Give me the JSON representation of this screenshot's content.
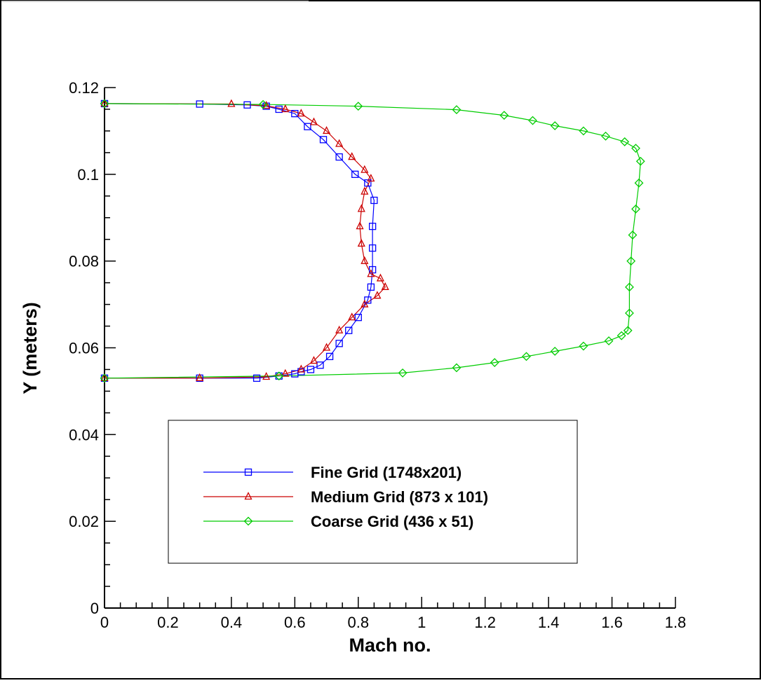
{
  "chart_data": {
    "type": "line",
    "title": "",
    "xlabel": "Mach no.",
    "ylabel": "Y (meters)",
    "xlim": [
      0,
      1.8
    ],
    "ylim": [
      0,
      0.12
    ],
    "x_ticks": [
      "0",
      "0.2",
      "0.4",
      "0.6",
      "0.8",
      "1",
      "1.2",
      "1.4",
      "1.6",
      "1.8"
    ],
    "y_ticks": [
      "0",
      "0.02",
      "0.04",
      "0.06",
      "0.08",
      "0.1",
      "0.12"
    ],
    "grid": false,
    "legend_position": "lower-center, boxed",
    "series": [
      {
        "name": "Fine Grid (1748x201)",
        "color": "#0000ff",
        "marker": "square",
        "points": [
          [
            0,
            0.053
          ],
          [
            0.3,
            0.053
          ],
          [
            0.48,
            0.053
          ],
          [
            0.55,
            0.0535
          ],
          [
            0.6,
            0.054
          ],
          [
            0.62,
            0.0545
          ],
          [
            0.65,
            0.055
          ],
          [
            0.68,
            0.056
          ],
          [
            0.71,
            0.058
          ],
          [
            0.74,
            0.061
          ],
          [
            0.77,
            0.064
          ],
          [
            0.8,
            0.067
          ],
          [
            0.83,
            0.071
          ],
          [
            0.84,
            0.074
          ],
          [
            0.845,
            0.078
          ],
          [
            0.845,
            0.083
          ],
          [
            0.845,
            0.088
          ],
          [
            0.85,
            0.094
          ],
          [
            0.83,
            0.098
          ],
          [
            0.79,
            0.1
          ],
          [
            0.74,
            0.104
          ],
          [
            0.69,
            0.108
          ],
          [
            0.64,
            0.111
          ],
          [
            0.6,
            0.114
          ],
          [
            0.55,
            0.115
          ],
          [
            0.51,
            0.1157
          ],
          [
            0.45,
            0.116
          ],
          [
            0.3,
            0.1162
          ],
          [
            0,
            0.1163
          ]
        ]
      },
      {
        "name": "Medium Grid (873 x 101)",
        "color": "#cc0000",
        "marker": "triangle",
        "points": [
          [
            0,
            0.053
          ],
          [
            0.3,
            0.053
          ],
          [
            0.51,
            0.0533
          ],
          [
            0.57,
            0.054
          ],
          [
            0.62,
            0.055
          ],
          [
            0.66,
            0.057
          ],
          [
            0.7,
            0.06
          ],
          [
            0.74,
            0.064
          ],
          [
            0.78,
            0.067
          ],
          [
            0.82,
            0.07
          ],
          [
            0.86,
            0.072
          ],
          [
            0.885,
            0.074
          ],
          [
            0.87,
            0.076
          ],
          [
            0.84,
            0.077
          ],
          [
            0.82,
            0.08
          ],
          [
            0.81,
            0.084
          ],
          [
            0.805,
            0.088
          ],
          [
            0.81,
            0.092
          ],
          [
            0.82,
            0.096
          ],
          [
            0.84,
            0.099
          ],
          [
            0.82,
            0.101
          ],
          [
            0.78,
            0.104
          ],
          [
            0.74,
            0.107
          ],
          [
            0.7,
            0.11
          ],
          [
            0.66,
            0.112
          ],
          [
            0.62,
            0.114
          ],
          [
            0.57,
            0.115
          ],
          [
            0.51,
            0.1158
          ],
          [
            0.4,
            0.1162
          ],
          [
            0,
            0.1163
          ]
        ]
      },
      {
        "name": "Coarse Grid (436 x 51)",
        "color": "#00cc00",
        "marker": "diamond",
        "points": [
          [
            0,
            0.053
          ],
          [
            0.55,
            0.0535
          ],
          [
            0.94,
            0.0542
          ],
          [
            1.11,
            0.0554
          ],
          [
            1.23,
            0.0566
          ],
          [
            1.33,
            0.058
          ],
          [
            1.42,
            0.0592
          ],
          [
            1.51,
            0.0604
          ],
          [
            1.59,
            0.0616
          ],
          [
            1.63,
            0.0628
          ],
          [
            1.65,
            0.064
          ],
          [
            1.655,
            0.068
          ],
          [
            1.655,
            0.074
          ],
          [
            1.66,
            0.08
          ],
          [
            1.665,
            0.086
          ],
          [
            1.675,
            0.092
          ],
          [
            1.685,
            0.098
          ],
          [
            1.69,
            0.103
          ],
          [
            1.675,
            0.106
          ],
          [
            1.64,
            0.1075
          ],
          [
            1.58,
            0.1088
          ],
          [
            1.51,
            0.11
          ],
          [
            1.42,
            0.1112
          ],
          [
            1.35,
            0.1124
          ],
          [
            1.26,
            0.1136
          ],
          [
            1.11,
            0.1149
          ],
          [
            0.8,
            0.1157
          ],
          [
            0.5,
            0.1161
          ],
          [
            0,
            0.1163
          ]
        ]
      }
    ]
  }
}
